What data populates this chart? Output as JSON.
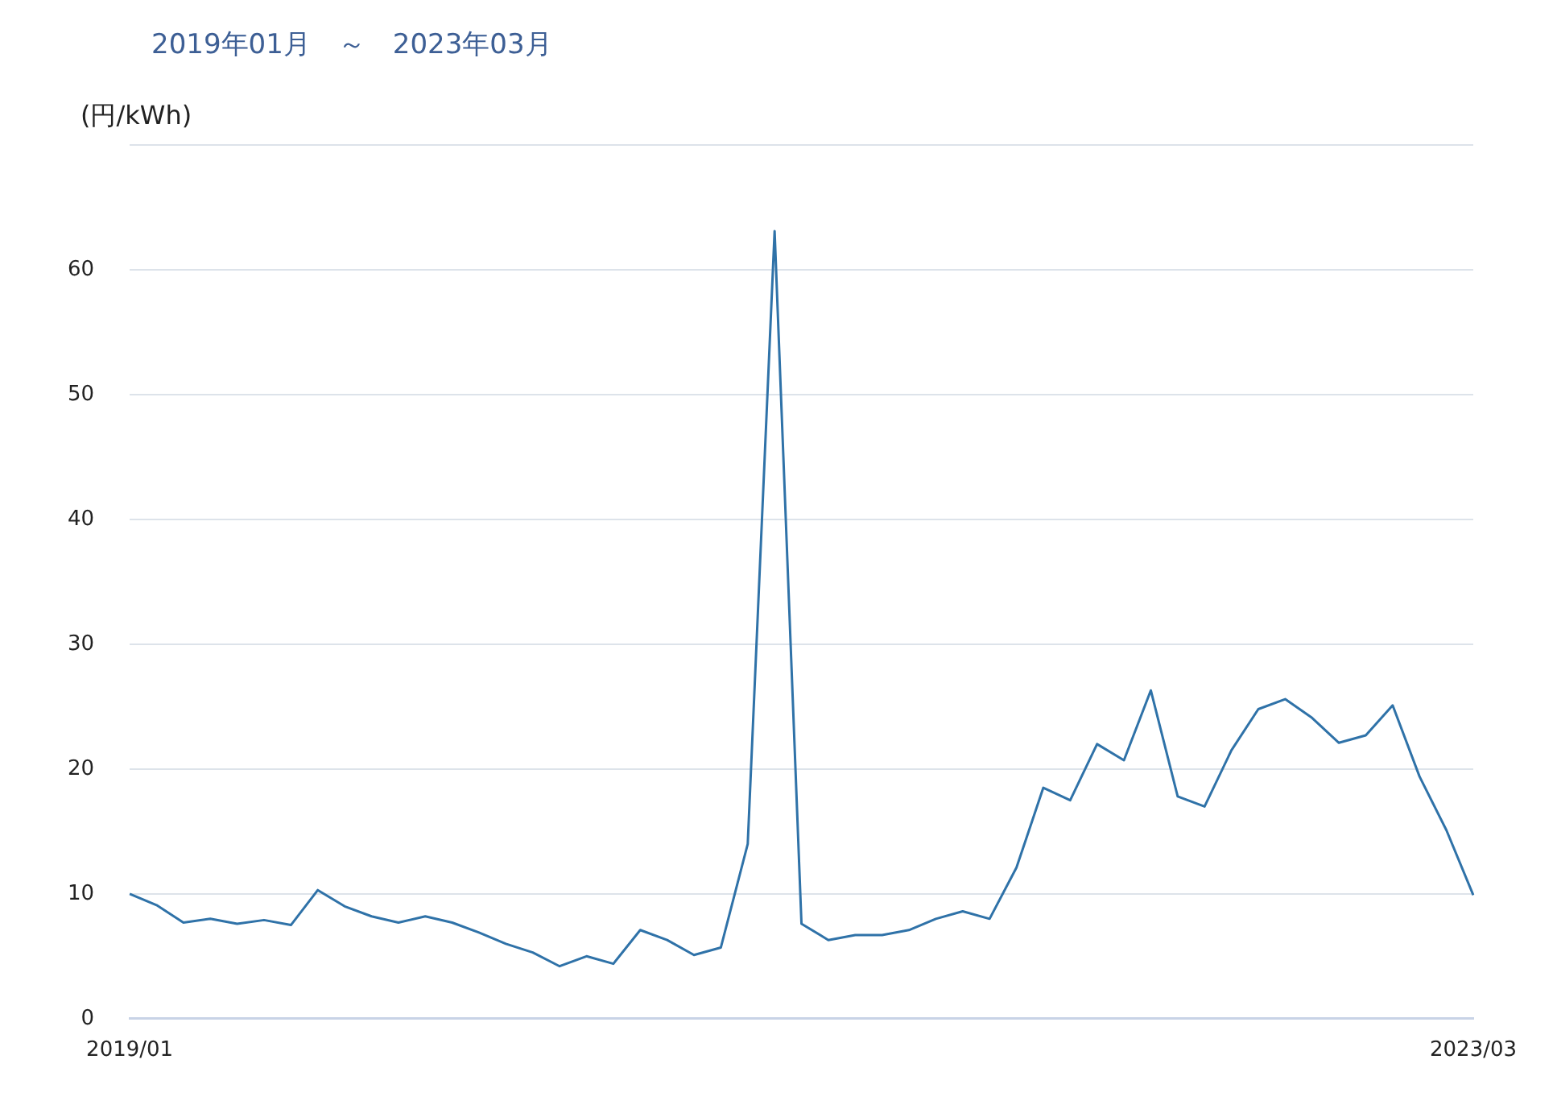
{
  "chart_data": {
    "type": "line",
    "title": "2019年01月　～　2023年03月",
    "ylabel": "(円/kWh)",
    "categories": [
      "2019/01",
      null,
      null,
      null,
      null,
      null,
      null,
      null,
      null,
      null,
      null,
      null,
      null,
      null,
      null,
      null,
      null,
      null,
      null,
      null,
      null,
      null,
      null,
      null,
      null,
      null,
      null,
      null,
      null,
      null,
      null,
      null,
      null,
      null,
      null,
      null,
      null,
      null,
      null,
      null,
      null,
      null,
      null,
      null,
      null,
      null,
      null,
      null,
      null,
      null,
      "2023/03"
    ],
    "series": [
      {
        "color": "#2f72a8",
        "values": [
          10.0,
          9.1,
          7.7,
          8.0,
          7.6,
          7.9,
          7.5,
          10.3,
          9.0,
          8.2,
          7.7,
          8.2,
          7.7,
          6.9,
          6.0,
          5.3,
          4.2,
          5.0,
          4.4,
          7.1,
          6.3,
          5.1,
          5.7,
          14.0,
          63.1,
          7.6,
          6.3,
          6.7,
          6.7,
          7.1,
          8.0,
          8.6,
          8.0,
          12.1,
          18.5,
          17.5,
          22.0,
          20.7,
          26.3,
          17.8,
          17.0,
          21.5,
          24.8,
          25.6,
          24.1,
          22.1,
          22.7,
          25.1,
          19.4,
          15.1,
          9.9
        ]
      }
    ],
    "ylim": [
      0,
      70
    ],
    "yticks": [
      0,
      10,
      20,
      30,
      40,
      50,
      60,
      {
        "value": 70,
        "label": null
      }
    ],
    "grid": "y",
    "marker": "none",
    "line_style": "solid",
    "legend": false
  }
}
